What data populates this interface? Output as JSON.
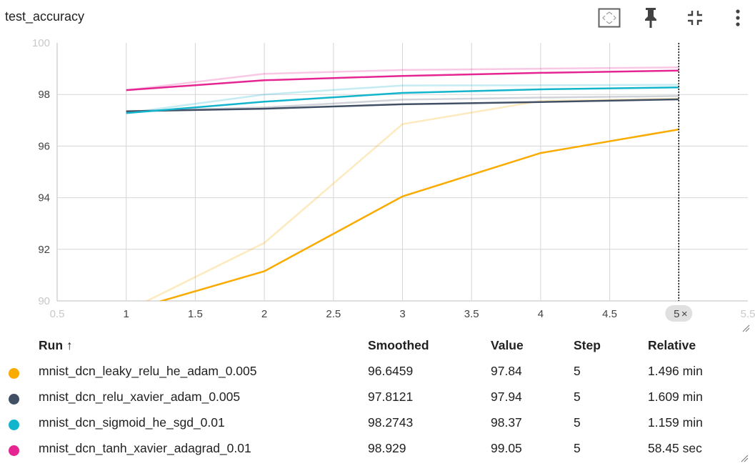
{
  "header": {
    "title": "test_accuracy",
    "icons": [
      "fit-domain-icon",
      "pin-icon",
      "collapse-icon",
      "more-vert-icon"
    ]
  },
  "hover_x_label": "5",
  "table": {
    "headers": {
      "run": "Run ↑",
      "smoothed": "Smoothed",
      "value": "Value",
      "step": "Step",
      "relative": "Relative"
    },
    "rows": [
      {
        "color": "#f9ab00",
        "run": "mnist_dcn_leaky_relu_he_adam_0.005",
        "smoothed": "96.6459",
        "value": "97.84",
        "step": "5",
        "relative": "1.496 min"
      },
      {
        "color": "#425066",
        "run": "mnist_dcn_relu_xavier_adam_0.005",
        "smoothed": "97.8121",
        "value": "97.94",
        "step": "5",
        "relative": "1.609 min"
      },
      {
        "color": "#12b5cb",
        "run": "mnist_dcn_sigmoid_he_sgd_0.01",
        "smoothed": "98.2743",
        "value": "98.37",
        "step": "5",
        "relative": "1.159 min"
      },
      {
        "color": "#e52592",
        "run": "mnist_dcn_tanh_xavier_adagrad_0.01",
        "smoothed": "98.929",
        "value": "99.05",
        "step": "5",
        "relative": "58.45 sec"
      }
    ]
  },
  "chart_data": {
    "type": "line",
    "title": "test_accuracy",
    "xlabel": "",
    "ylabel": "",
    "xlim": [
      0.5,
      5.5
    ],
    "ylim": [
      90,
      100
    ],
    "x_ticks": [
      "0.5",
      "1",
      "1.5",
      "2",
      "2.5",
      "3",
      "3.5",
      "4",
      "4.5",
      "5",
      "5.5"
    ],
    "y_ticks": [
      "90",
      "92",
      "94",
      "96",
      "98",
      "100"
    ],
    "grid": true,
    "hover_step": 5,
    "x": [
      1,
      2,
      3,
      4,
      5
    ],
    "series": [
      {
        "name": "mnist_dcn_leaky_relu_he_adam_0.005",
        "color": "#f9ab00",
        "smoothed": [
          89.6,
          91.15,
          94.05,
          95.73,
          96.6459
        ],
        "raw": [
          89.6,
          92.25,
          96.85,
          97.75,
          97.84
        ]
      },
      {
        "name": "mnist_dcn_relu_xavier_adam_0.005",
        "color": "#425066",
        "smoothed": [
          97.35,
          97.45,
          97.62,
          97.71,
          97.8121
        ],
        "raw": [
          97.35,
          97.5,
          97.8,
          97.88,
          97.94
        ]
      },
      {
        "name": "mnist_dcn_sigmoid_he_sgd_0.01",
        "color": "#12b5cb",
        "smoothed": [
          97.28,
          97.72,
          98.06,
          98.2,
          98.2743
        ],
        "raw": [
          97.28,
          98.0,
          98.35,
          98.36,
          98.37
        ]
      },
      {
        "name": "mnist_dcn_tanh_xavier_adagrad_0.01",
        "color": "#e52592",
        "smoothed": [
          98.17,
          98.55,
          98.72,
          98.84,
          98.929
        ],
        "raw": [
          98.17,
          98.8,
          98.95,
          99.0,
          99.05
        ]
      }
    ]
  }
}
